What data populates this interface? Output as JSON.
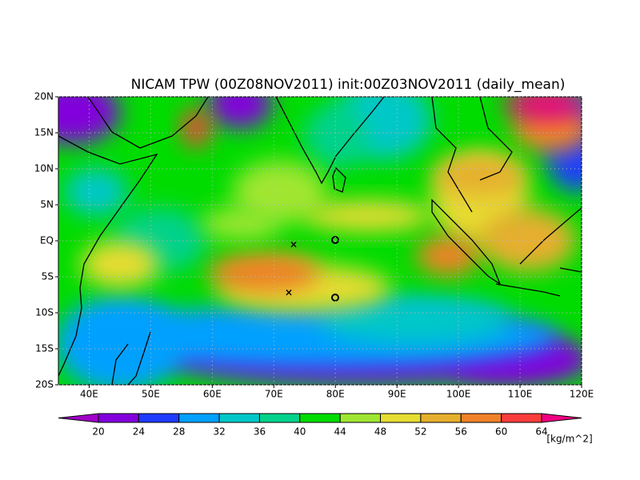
{
  "map": {
    "title": "NICAM TPW (00Z08NOV2011) init:00Z03NOV2011 (daily_mean)",
    "xlim": [
      35,
      120
    ],
    "ylim": [
      -20,
      20
    ],
    "xticks": [
      {
        "value": 40,
        "label": "40E"
      },
      {
        "value": 50,
        "label": "50E"
      },
      {
        "value": 60,
        "label": "60E"
      },
      {
        "value": 70,
        "label": "70E"
      },
      {
        "value": 80,
        "label": "80E"
      },
      {
        "value": 90,
        "label": "90E"
      },
      {
        "value": 100,
        "label": "100E"
      },
      {
        "value": 110,
        "label": "110E"
      },
      {
        "value": 120,
        "label": "120E"
      }
    ],
    "yticks": [
      {
        "value": -20,
        "label": "20S"
      },
      {
        "value": -15,
        "label": "15S"
      },
      {
        "value": -10,
        "label": "10S"
      },
      {
        "value": -5,
        "label": "5S"
      },
      {
        "value": 0,
        "label": "EQ"
      },
      {
        "value": 5,
        "label": "5N"
      },
      {
        "value": 10,
        "label": "10N"
      },
      {
        "value": 15,
        "label": "15N"
      },
      {
        "value": 20,
        "label": "20N"
      }
    ],
    "grid": true
  },
  "colorbar": {
    "levels": [
      20,
      24,
      28,
      32,
      36,
      40,
      44,
      48,
      52,
      56,
      60,
      64
    ],
    "colors": [
      "#a000c8",
      "#8200dc",
      "#1e3cff",
      "#00a0ff",
      "#00c8c8",
      "#00d28c",
      "#00dc00",
      "#a0e632",
      "#e6dc32",
      "#e6af2d",
      "#f08228",
      "#fa3c3c",
      "#f00082"
    ],
    "unit": "[kg/m^2]"
  }
}
